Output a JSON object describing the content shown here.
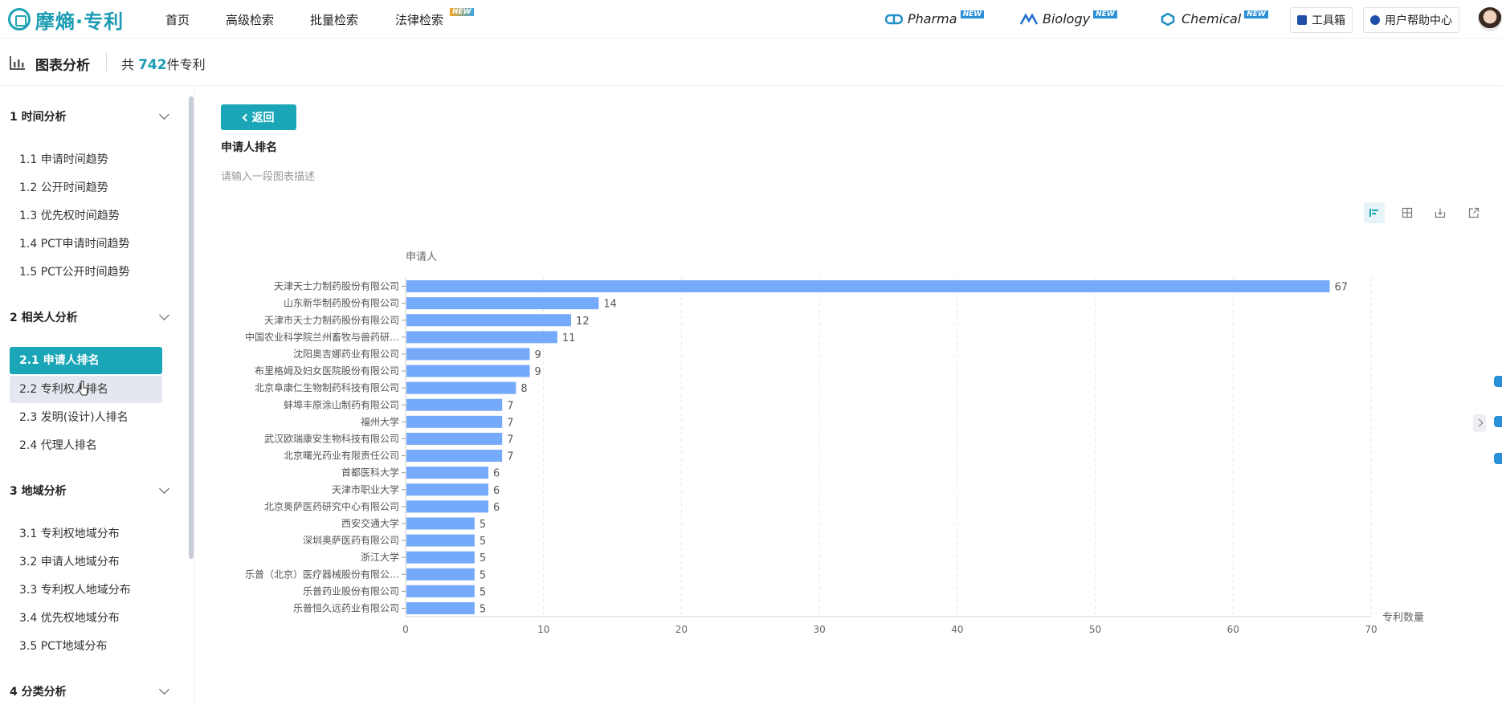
{
  "nav": {
    "logo_text": "摩熵·专利",
    "links": [
      "首页",
      "高级检索",
      "批量检索",
      "法律检索"
    ],
    "new_label": "NEW",
    "products": [
      "Pharma",
      "Biology",
      "Chemical"
    ],
    "toolbox": "工具箱",
    "help": "用户帮助中心"
  },
  "subheader": {
    "title": "图表分析",
    "count_prefix": "共 ",
    "count": "742",
    "count_suffix": "件专利"
  },
  "sidebar": {
    "sections": [
      {
        "title": "1 时间分析",
        "items": [
          "1.1 申请时间趋势",
          "1.2 公开时间趋势",
          "1.3 优先权时间趋势",
          "1.4 PCT申请时间趋势",
          "1.5 PCT公开时间趋势"
        ]
      },
      {
        "title": "2 相关人分析",
        "items": [
          "2.1 申请人排名",
          "2.2 专利权人排名",
          "2.3 发明(设计)人排名",
          "2.4 代理人排名"
        ]
      },
      {
        "title": "3 地域分析",
        "items": [
          "3.1 专利权地域分布",
          "3.2 申请人地域分布",
          "3.3 专利权人地域分布",
          "3.4 优先权地域分布",
          "3.5 PCT地域分布"
        ]
      },
      {
        "title": "4 分类分析",
        "items": []
      }
    ]
  },
  "main": {
    "back_label": "返回",
    "chart_title": "申请人排名",
    "desc_placeholder": "请输入一段图表描述"
  },
  "colors": {
    "accent": "#1aa6b7",
    "bar": "#75a9f9"
  },
  "toolbar_icons": [
    "bar-view-icon",
    "table-view-icon",
    "download-icon",
    "open-external-icon"
  ],
  "chart_data": {
    "type": "bar",
    "orientation": "horizontal",
    "ylabel": "申请人",
    "xlabel": "专利数量",
    "xlim": [
      0,
      70
    ],
    "xticks": [
      0,
      10,
      20,
      30,
      40,
      50,
      60,
      70
    ],
    "categories": [
      "天津天士力制药股份有限公司",
      "山东新华制药股份有限公司",
      "天津市天士力制药股份有限公司",
      "中国农业科学院兰州畜牧与兽药研…",
      "沈阳奥吉娜药业有限公司",
      "布里格姆及妇女医院股份有限公司",
      "北京阜康仁生物制药科技有限公司",
      "蚌埠丰原涂山制药有限公司",
      "福州大学",
      "武汉欧瑞康安生物科技有限公司",
      "北京曙光药业有限责任公司",
      "首都医科大学",
      "天津市职业大学",
      "北京奥萨医药研究中心有限公司",
      "西安交通大学",
      "深圳奥萨医药有限公司",
      "浙江大学",
      "乐普（北京）医疗器械股份有限公…",
      "乐普药业股份有限公司",
      "乐普恒久远药业有限公司"
    ],
    "values": [
      67,
      14,
      12,
      11,
      9,
      9,
      8,
      7,
      7,
      7,
      7,
      6,
      6,
      6,
      5,
      5,
      5,
      5,
      5,
      5
    ],
    "grid": true
  }
}
